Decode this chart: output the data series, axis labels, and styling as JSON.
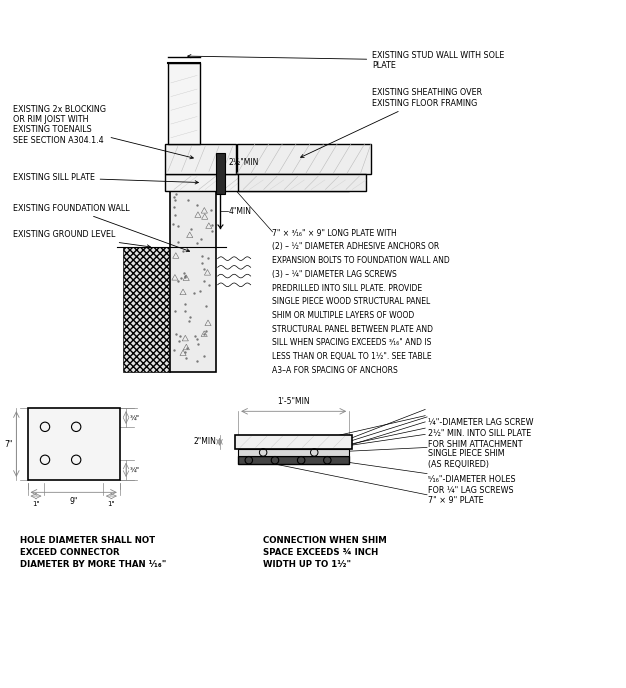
{
  "bg_color": "#ffffff",
  "line_color": "#000000",
  "ext_color": "#888888",
  "caption_left": "HOLE DIAMETER SHALL NOT\nEXCEED CONNECTOR\nDIAMETER BY MORE THAN ¹⁄₁₆\"",
  "caption_right": "CONNECTION WHEN SHIM\nSPACE EXCEEDS ¾ INCH\nWIDTH UP TO 1¹⁄₂\"",
  "plate_desc_line1": "7\" × ³⁄₁₆\" × 9\" LONG PLATE WITH",
  "plate_desc_line2": "(2) – ½\" DIAMETER ADHESIVE ANCHORS OR",
  "plate_desc_line3": "EXPANSION BOLTS TO FOUNDATION WALL AND",
  "plate_desc_line4": "(3) – ¼\" DIAMETER LAG SCREWS",
  "plate_desc_line5": "PREDRILLED INTO SILL PLATE. PROVIDE",
  "plate_desc_line6": "SINGLE PIECE WOOD STRUCTURAL PANEL",
  "plate_desc_line7": "SHIM OR MULTIPLE LAYERS OF WOOD",
  "plate_desc_line8": "STRUCTURAL PANEL BETWEEN PLATE AND",
  "plate_desc_line9": "SILL WHEN SPACING EXCEEDS ³⁄₁₆\" AND IS",
  "plate_desc_line10": "LESS THAN OR EQUAL TO 1½\". SEE TABLE",
  "plate_desc_line11": "A3–A FOR SPACING OF ANCHORS"
}
